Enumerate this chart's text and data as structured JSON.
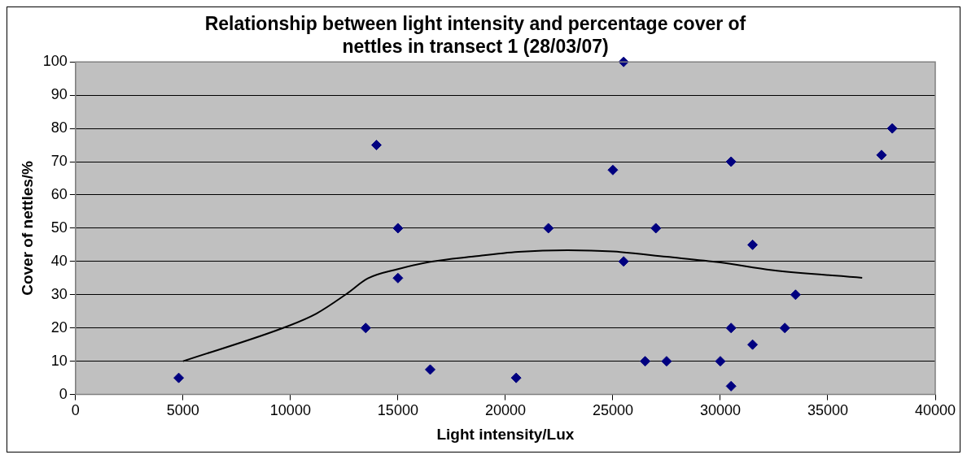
{
  "chart_data": {
    "type": "scatter",
    "title": "Relationship between light intensity and percentage cover of nettles in transect 1 (28/03/07)",
    "xlabel": "Light intensity/Lux",
    "ylabel": "Cover of nettles/%",
    "series": [
      {
        "type": "scatter",
        "color": "#000080",
        "marker": "diamond",
        "x": [
          4800,
          13500,
          14000,
          15000,
          15000,
          16500,
          20500,
          22000,
          25000,
          25500,
          25500,
          26500,
          27000,
          27500,
          30000,
          30500,
          30500,
          30500,
          31500,
          31500,
          33000,
          33500,
          37500,
          38000
        ],
        "values": [
          5,
          20,
          75,
          50,
          35,
          7.5,
          5,
          50,
          67.5,
          100,
          40,
          10,
          50,
          10,
          10,
          70,
          20,
          2.5,
          45,
          15,
          20,
          30,
          72,
          80
        ]
      },
      {
        "type": "line",
        "color": "#000000",
        "marker": "none",
        "line_style": "solid",
        "x": [
          5000,
          9900,
          11200,
          12600,
          13600,
          15000,
          16500,
          18500,
          20600,
          22900,
          25000,
          27500,
          30000,
          32400,
          36600
        ],
        "values": [
          10,
          20.6,
          24.3,
          30.2,
          34.9,
          37.7,
          39.9,
          41.5,
          42.9,
          43.4,
          43,
          41.4,
          39.7,
          37.4,
          35.1
        ]
      }
    ],
    "xlim": [
      0,
      40000
    ],
    "xticks": [
      0,
      5000,
      10000,
      15000,
      20000,
      25000,
      30000,
      35000,
      40000
    ],
    "ylim": [
      0,
      100
    ],
    "yticks": [
      0,
      10,
      20,
      30,
      40,
      50,
      60,
      70,
      80,
      90,
      100
    ],
    "grid": "y",
    "legend": false
  }
}
